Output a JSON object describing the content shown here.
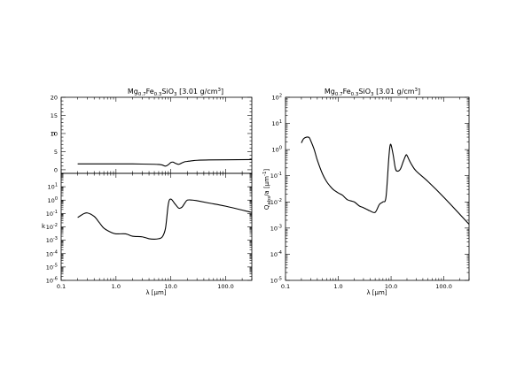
{
  "chart_data": [
    {
      "id": "n-panel",
      "type": "line",
      "title": {
        "pre": "Mg",
        "s1": "0.7",
        "mid1": "Fe",
        "s2": "0.3",
        "mid2": "SiO",
        "s3": "3",
        "post": " [3.01 g/cm",
        "sup": "3",
        "end": "]"
      },
      "ylabel": "n",
      "xscale": "log",
      "xlim": [
        0.1,
        300
      ],
      "ylim": [
        -1,
        20
      ],
      "yticks": [
        0,
        5,
        10,
        15,
        20
      ],
      "x": [
        0.2,
        0.5,
        1,
        2,
        5,
        6,
        7,
        8,
        9,
        10,
        11,
        12,
        14,
        16,
        18,
        20,
        25,
        30,
        50,
        100,
        300
      ],
      "y": [
        1.6,
        1.6,
        1.6,
        1.6,
        1.5,
        1.45,
        1.3,
        1.0,
        1.4,
        2.0,
        2.1,
        1.8,
        1.5,
        1.9,
        2.2,
        2.3,
        2.5,
        2.6,
        2.7,
        2.75,
        2.8
      ]
    },
    {
      "id": "k-panel",
      "type": "line",
      "ylabel": "k",
      "xlabel": "λ [μm]",
      "xscale": "log",
      "yscale": "log",
      "xlim": [
        0.1,
        300
      ],
      "ylim": [
        1e-06,
        100
      ],
      "yticks": [
        {
          "base": "10",
          "exp": "1",
          "v": 10
        },
        {
          "base": "10",
          "exp": "0",
          "v": 1
        },
        {
          "base": "10",
          "exp": "-1",
          "v": 0.1
        },
        {
          "base": "10",
          "exp": "-2",
          "v": 0.01
        },
        {
          "base": "10",
          "exp": "-3",
          "v": 0.001
        },
        {
          "base": "10",
          "exp": "-4",
          "v": 0.0001
        },
        {
          "base": "10",
          "exp": "-5",
          "v": 1e-05
        },
        {
          "base": "10",
          "exp": "-6",
          "v": 1e-06
        }
      ],
      "xticks": [
        {
          "label": "0.1",
          "v": 0.1
        },
        {
          "label": "1.0",
          "v": 1
        },
        {
          "label": "10.0",
          "v": 10
        },
        {
          "label": "100.0",
          "v": 100
        }
      ],
      "x": [
        0.2,
        0.25,
        0.3,
        0.4,
        0.5,
        0.6,
        0.8,
        1,
        1.5,
        2,
        3,
        4,
        5,
        6,
        7,
        8,
        9,
        10,
        12,
        14,
        16,
        18,
        20,
        25,
        30,
        50,
        100,
        300
      ],
      "y": [
        0.05,
        0.09,
        0.11,
        0.06,
        0.02,
        0.008,
        0.004,
        0.003,
        0.003,
        0.002,
        0.0018,
        0.0013,
        0.0012,
        0.0013,
        0.0018,
        0.008,
        0.5,
        1.2,
        0.5,
        0.25,
        0.3,
        0.6,
        1.0,
        1.0,
        0.9,
        0.6,
        0.35,
        0.12
      ]
    },
    {
      "id": "q-panel",
      "type": "line",
      "title": {
        "pre": "Mg",
        "s1": "0.7",
        "mid1": "Fe",
        "s2": "0.3",
        "mid2": "SiO",
        "s3": "3",
        "post": " [3.01 g/cm",
        "sup": "3",
        "end": "]"
      },
      "ylabel": {
        "main": "Q",
        "sub": "abs",
        "rest": "/a [μm",
        "sup": "-1",
        "end": "]"
      },
      "xlabel": "λ [μm]",
      "xscale": "log",
      "yscale": "log",
      "xlim": [
        0.1,
        300
      ],
      "ylim": [
        1e-05,
        100
      ],
      "yticks": [
        {
          "base": "10",
          "exp": "2",
          "v": 100
        },
        {
          "base": "10",
          "exp": "1",
          "v": 10
        },
        {
          "base": "10",
          "exp": "0",
          "v": 1
        },
        {
          "base": "10",
          "exp": "-1",
          "v": 0.1
        },
        {
          "base": "10",
          "exp": "-2",
          "v": 0.01
        },
        {
          "base": "10",
          "exp": "-3",
          "v": 0.001
        },
        {
          "base": "10",
          "exp": "-4",
          "v": 0.0001
        },
        {
          "base": "10",
          "exp": "-5",
          "v": 1e-05
        }
      ],
      "xticks": [
        {
          "label": "0.1",
          "v": 0.1
        },
        {
          "label": "1.0",
          "v": 1
        },
        {
          "label": "10.0",
          "v": 10
        },
        {
          "label": "100.0",
          "v": 100
        }
      ],
      "x": [
        0.2,
        0.22,
        0.25,
        0.28,
        0.3,
        0.35,
        0.4,
        0.5,
        0.6,
        0.7,
        0.8,
        1,
        1.2,
        1.5,
        2,
        2.5,
        3,
        4,
        5,
        6,
        7,
        8,
        9,
        9.5,
        10,
        11,
        12,
        13,
        15,
        17,
        19,
        20,
        22,
        25,
        30,
        50,
        100,
        300
      ],
      "y": [
        1.8,
        2.6,
        3.0,
        2.9,
        2.2,
        1.0,
        0.4,
        0.12,
        0.06,
        0.04,
        0.03,
        0.022,
        0.018,
        0.012,
        0.01,
        0.007,
        0.006,
        0.0045,
        0.004,
        0.008,
        0.01,
        0.015,
        0.4,
        1.3,
        1.5,
        0.6,
        0.2,
        0.15,
        0.18,
        0.35,
        0.6,
        0.6,
        0.4,
        0.25,
        0.15,
        0.06,
        0.015,
        0.0014
      ]
    }
  ]
}
